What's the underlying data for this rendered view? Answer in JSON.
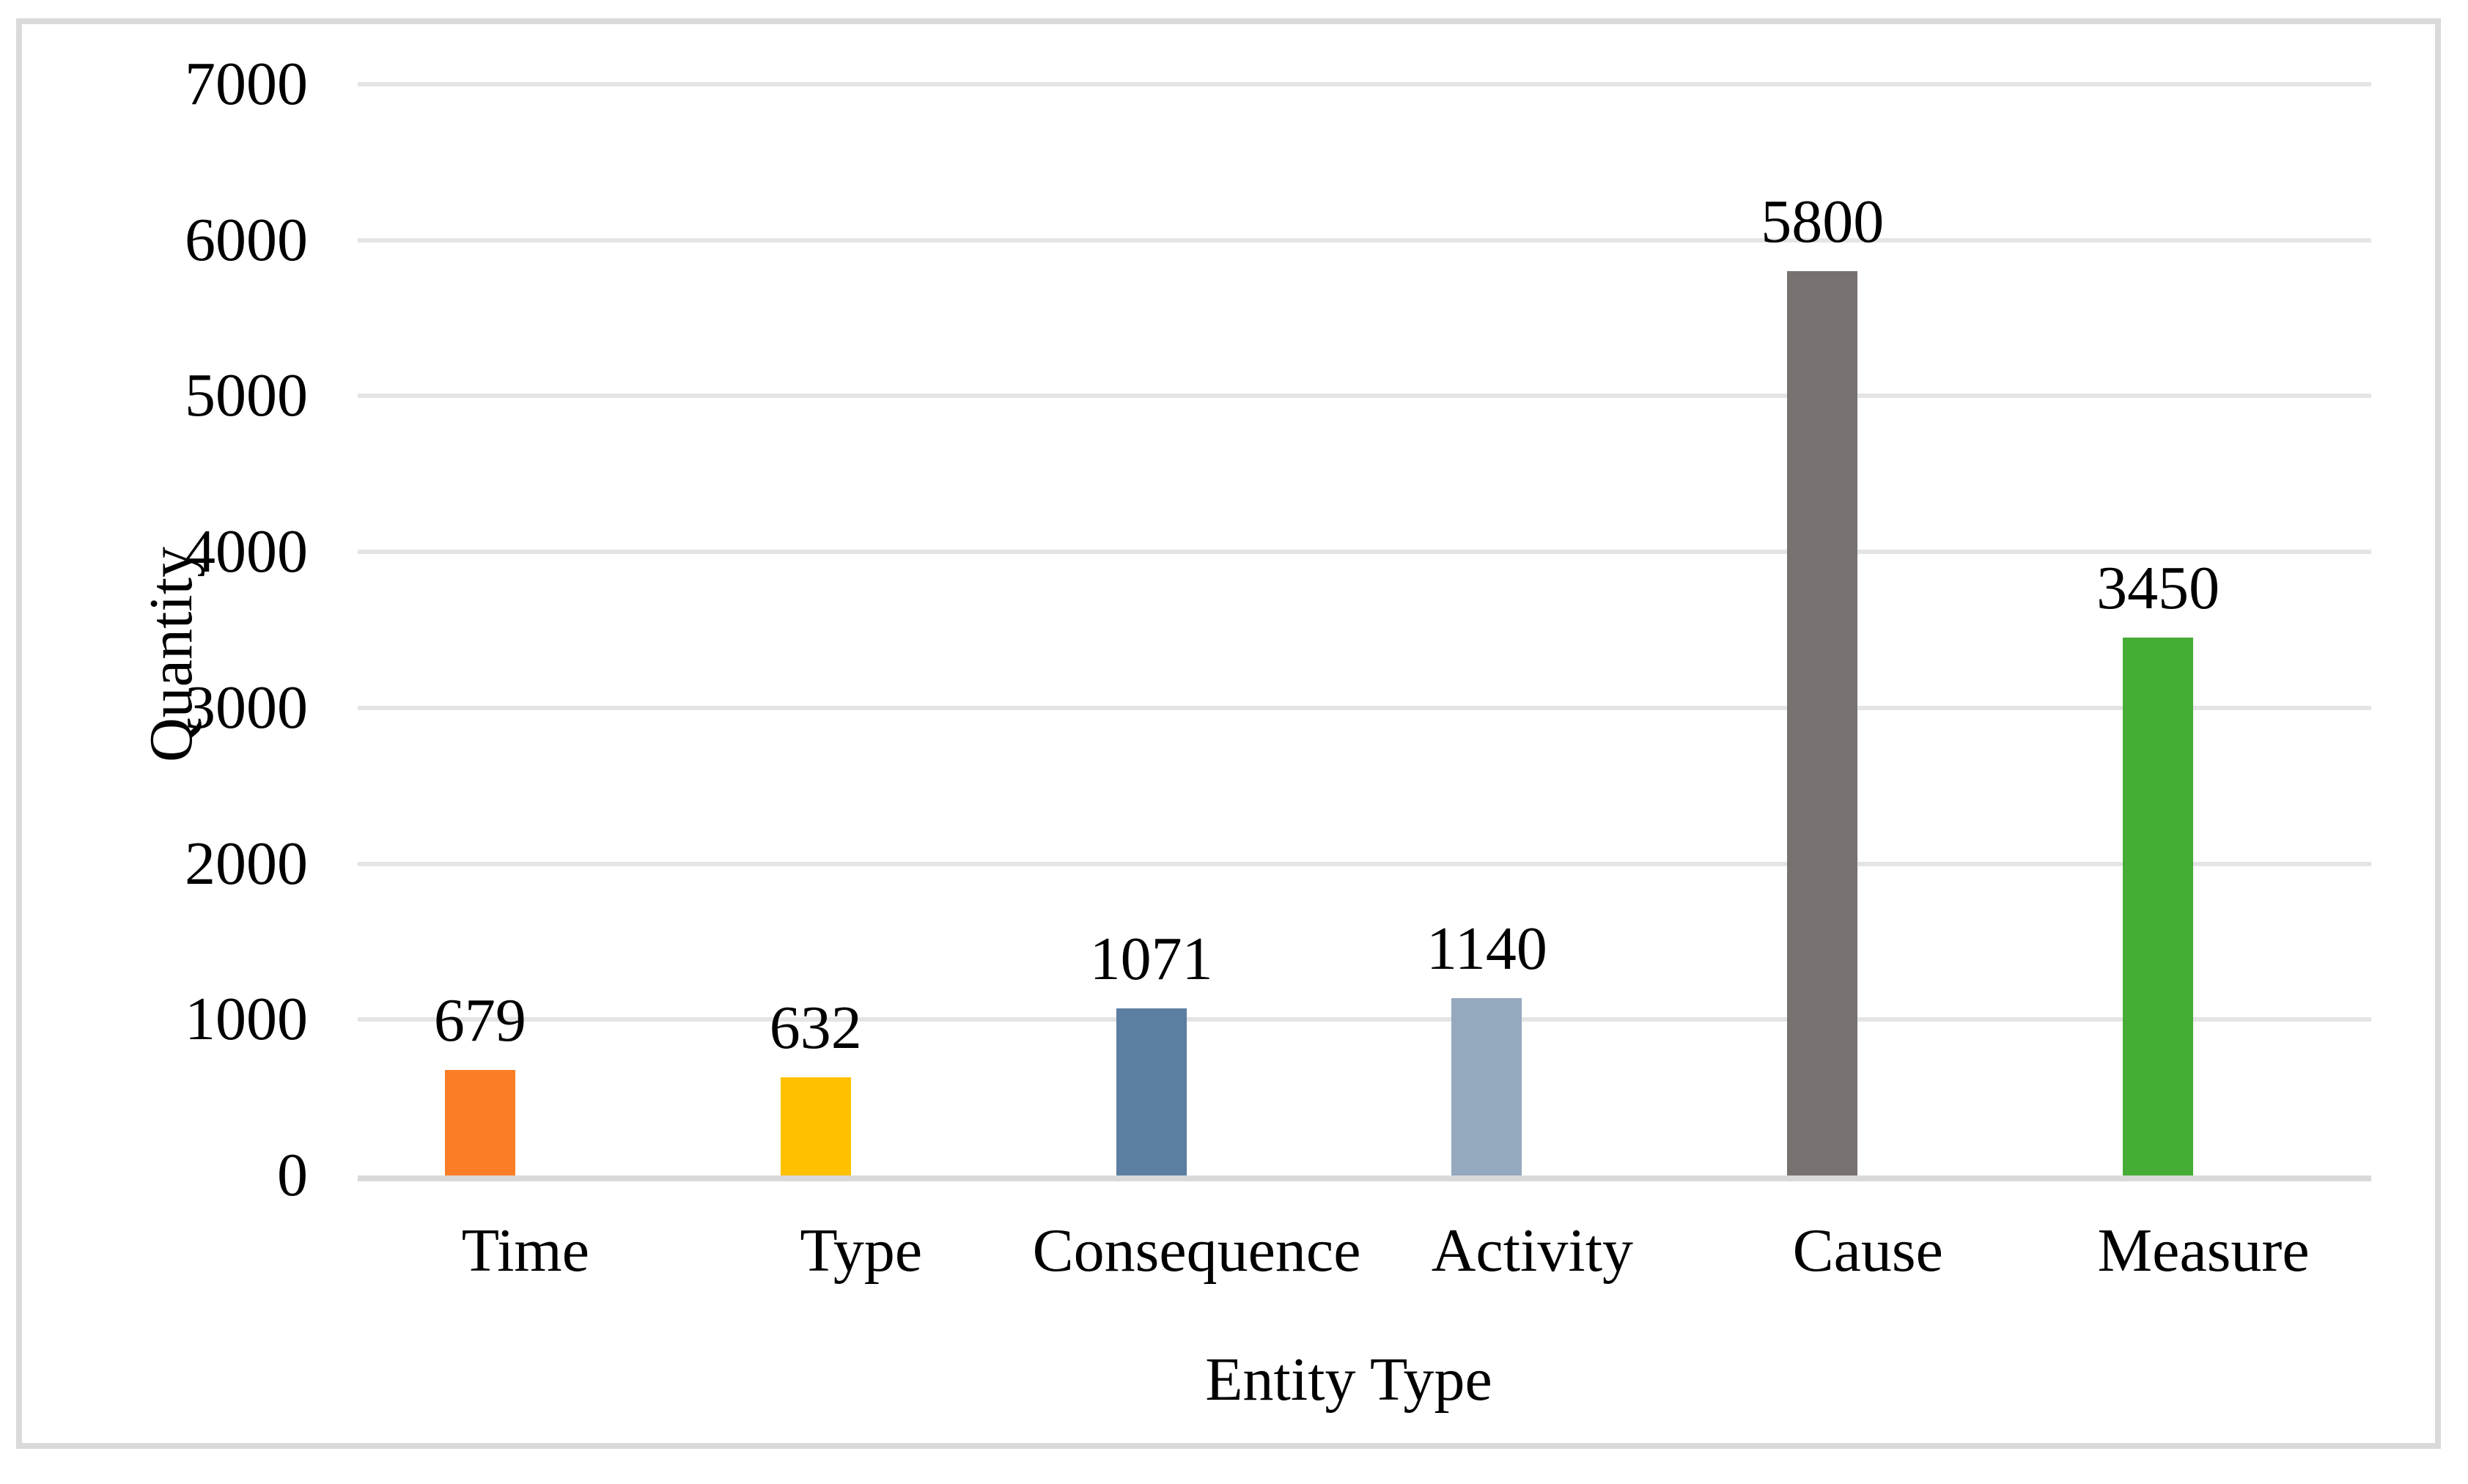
{
  "chart_data": {
    "type": "bar",
    "title": "",
    "categories": [
      "Time",
      "Type",
      "Consequence",
      "Activity",
      "Cause",
      "Measure"
    ],
    "values": [
      679,
      632,
      1071,
      1140,
      5800,
      3450
    ],
    "data_labels": [
      "679",
      "632",
      "1071",
      "1140",
      "5800",
      "3450"
    ],
    "bar_colors": [
      "#FB7D26",
      "#FFC000",
      "#5B7EA1",
      "#95A9BE",
      "#777170",
      "#45AC35"
    ],
    "xlabel": "Entity Type",
    "ylabel": "Quantity",
    "ylim": [
      0,
      7000
    ],
    "ytick_step": 1000,
    "yticks": [
      "0",
      "1000",
      "2000",
      "3000",
      "4000",
      "5000",
      "6000",
      "7000"
    ],
    "grid": "horizontal-only",
    "legend": "none"
  },
  "colors": {
    "frame_border": "#DADADA",
    "gridline": "#E4E4E4",
    "axis_line": "#D9D9D9",
    "background": "#FFFFFF",
    "text": "#000000"
  }
}
